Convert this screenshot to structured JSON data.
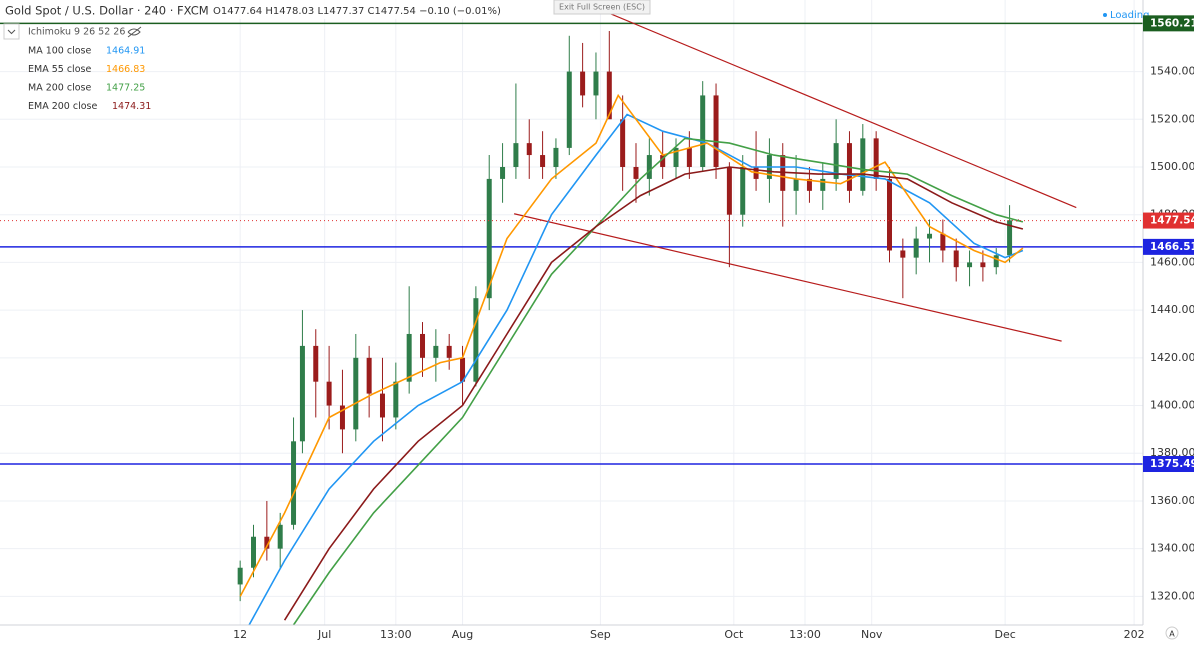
{
  "chart_data": {
    "type": "candlestick",
    "title": "Gold Spot / U.S. Dollar · 240 · FXCM",
    "ohlc_text": "O1477.64 H1478.03 L1477.37 C1477.54 −0.10 (−0.01%)",
    "indicator": "Ichimoku 9 26 52 26",
    "fullscreen_hint": "Exit Full Screen (ESC)",
    "status": "Loading",
    "xlim": [
      -54,
      203
    ],
    "ylim": [
      1308,
      1570
    ],
    "xticks": [
      {
        "value": 0,
        "label": "12"
      },
      {
        "value": 19,
        "label": "Jul"
      },
      {
        "value": 35,
        "label": "13:00"
      },
      {
        "value": 50,
        "label": "Aug"
      },
      {
        "value": 81,
        "label": "Sep"
      },
      {
        "value": 111,
        "label": "Oct"
      },
      {
        "value": 127,
        "label": "13:00"
      },
      {
        "value": 142,
        "label": "Nov"
      },
      {
        "value": 172,
        "label": "Dec"
      },
      {
        "value": 201,
        "label": "202"
      }
    ],
    "yticks": [
      {
        "value": 1320,
        "label": "1320.00"
      },
      {
        "value": 1340,
        "label": "1340.00"
      },
      {
        "value": 1360,
        "label": "1360.00"
      },
      {
        "value": 1380,
        "label": "1380.00"
      },
      {
        "value": 1400,
        "label": "1400.00"
      },
      {
        "value": 1420,
        "label": "1420.00"
      },
      {
        "value": 1440,
        "label": "1440.00"
      },
      {
        "value": 1460,
        "label": "1460.00"
      },
      {
        "value": 1480,
        "label": "1480.00"
      },
      {
        "value": 1500,
        "label": "1500.00"
      },
      {
        "value": 1520,
        "label": "1520.00"
      },
      {
        "value": 1540,
        "label": "1540.00"
      }
    ],
    "grid": true,
    "up_color": "#2f7d4a",
    "down_color": "#9b1c1c",
    "last_color": "#e03131",
    "candles": {
      "x": [
        0,
        3,
        6,
        9,
        12,
        14,
        17,
        20,
        23,
        26,
        29,
        32,
        35,
        38,
        41,
        44,
        47,
        50,
        53,
        56,
        59,
        62,
        65,
        68,
        71,
        74,
        77,
        80,
        83,
        86,
        89,
        92,
        95,
        98,
        101,
        104,
        107,
        110,
        113,
        116,
        119,
        122,
        125,
        128,
        131,
        134,
        137,
        140,
        143,
        146,
        149,
        152,
        155,
        158,
        161,
        164,
        167,
        170,
        173,
        175
      ],
      "open": [
        1325,
        1332,
        1345,
        1340,
        1350,
        1385,
        1425,
        1410,
        1400,
        1390,
        1420,
        1405,
        1395,
        1410,
        1430,
        1420,
        1425,
        1420,
        1410,
        1445,
        1495,
        1500,
        1510,
        1505,
        1500,
        1508,
        1540,
        1530,
        1540,
        1520,
        1500,
        1495,
        1505,
        1500,
        1508,
        1500,
        1530,
        1500,
        1480,
        1500,
        1495,
        1505,
        1490,
        1495,
        1490,
        1495,
        1510,
        1490,
        1512,
        1495,
        1465,
        1462,
        1470,
        1472,
        1465,
        1458,
        1460,
        1458,
        1463,
        1477.64
      ],
      "high": [
        1335,
        1350,
        1360,
        1355,
        1395,
        1440,
        1432,
        1425,
        1415,
        1430,
        1425,
        1420,
        1418,
        1450,
        1435,
        1432,
        1430,
        1425,
        1450,
        1505,
        1510,
        1535,
        1520,
        1515,
        1512,
        1555,
        1552,
        1548,
        1557,
        1530,
        1510,
        1512,
        1515,
        1512,
        1515,
        1536,
        1535,
        1502,
        1505,
        1515,
        1512,
        1510,
        1505,
        1500,
        1502,
        1520,
        1515,
        1518,
        1515,
        1500,
        1470,
        1475,
        1478,
        1478,
        1470,
        1465,
        1465,
        1466,
        1484,
        1478.03
      ],
      "low": [
        1318,
        1328,
        1335,
        1332,
        1348,
        1380,
        1395,
        1390,
        1380,
        1385,
        1395,
        1385,
        1390,
        1405,
        1412,
        1410,
        1415,
        1400,
        1408,
        1440,
        1485,
        1495,
        1495,
        1495,
        1495,
        1505,
        1525,
        1520,
        1530,
        1490,
        1485,
        1488,
        1495,
        1495,
        1495,
        1498,
        1495,
        1458,
        1475,
        1490,
        1485,
        1475,
        1480,
        1485,
        1482,
        1490,
        1485,
        1488,
        1490,
        1460,
        1445,
        1455,
        1460,
        1460,
        1452,
        1450,
        1452,
        1455,
        1460,
        1477.37
      ],
      "close": [
        1332,
        1345,
        1340,
        1350,
        1385,
        1425,
        1410,
        1400,
        1390,
        1420,
        1405,
        1395,
        1410,
        1430,
        1420,
        1425,
        1420,
        1410,
        1445,
        1495,
        1500,
        1510,
        1505,
        1500,
        1508,
        1540,
        1530,
        1540,
        1520,
        1500,
        1495,
        1505,
        1500,
        1508,
        1500,
        1530,
        1500,
        1480,
        1500,
        1495,
        1505,
        1490,
        1495,
        1490,
        1495,
        1510,
        1490,
        1512,
        1495,
        1465,
        1462,
        1470,
        1472,
        1465,
        1458,
        1460,
        1458,
        1463,
        1477.64,
        1477.54
      ]
    },
    "series": [
      {
        "name": "MA 100 close",
        "color": "#2196f3",
        "last": 1464.91,
        "x": [
          2,
          10,
          20,
          30,
          40,
          50,
          60,
          70,
          80,
          87,
          95,
          105,
          115,
          125,
          135,
          145,
          155,
          165,
          172,
          176
        ],
        "values": [
          1308,
          1335,
          1365,
          1385,
          1400,
          1410,
          1440,
          1480,
          1505,
          1522,
          1515,
          1510,
          1500,
          1500,
          1497,
          1495,
          1485,
          1468,
          1462,
          1465
        ]
      },
      {
        "name": "EMA 55 close",
        "color": "#ff9800",
        "last": 1466.83,
        "x": [
          0,
          10,
          20,
          30,
          45,
          50,
          60,
          70,
          80,
          85,
          95,
          105,
          115,
          125,
          135,
          145,
          155,
          165,
          172,
          176
        ],
        "values": [
          1320,
          1355,
          1395,
          1405,
          1418,
          1420,
          1470,
          1495,
          1510,
          1530,
          1505,
          1510,
          1498,
          1495,
          1493,
          1502,
          1475,
          1465,
          1460,
          1466
        ]
      },
      {
        "name": "MA 200 close",
        "color": "#43a047",
        "last": 1477.25,
        "x": [
          12,
          20,
          30,
          40,
          50,
          60,
          70,
          80,
          90,
          100,
          110,
          120,
          130,
          140,
          150,
          160,
          170,
          176
        ],
        "values": [
          1308,
          1330,
          1355,
          1375,
          1395,
          1425,
          1455,
          1475,
          1495,
          1512,
          1510,
          1505,
          1502,
          1499,
          1497,
          1488,
          1480,
          1477
        ]
      },
      {
        "name": "EMA 200 close",
        "color": "#8b1a1a",
        "last": 1474.31,
        "x": [
          10,
          20,
          30,
          40,
          50,
          60,
          70,
          80,
          90,
          100,
          110,
          120,
          130,
          140,
          150,
          160,
          170,
          176
        ],
        "values": [
          1310,
          1340,
          1365,
          1385,
          1400,
          1430,
          1460,
          1475,
          1488,
          1497,
          1500,
          1498,
          1497,
          1497,
          1495,
          1485,
          1477,
          1474
        ]
      }
    ],
    "trendlines": [
      {
        "color": "#b71c1c",
        "x": [
          78.4,
          188
        ],
        "values": [
          1568,
          1483
        ]
      },
      {
        "color": "#b71c1c",
        "x": [
          61.6,
          184.7
        ],
        "values": [
          1480.4,
          1427
        ]
      }
    ],
    "levels": [
      {
        "value": 1560.21,
        "color": "#1b5e20"
      },
      {
        "value": 1466.51,
        "color": "#1e24e0"
      },
      {
        "value": 1375.49,
        "color": "#1e24e0"
      }
    ]
  }
}
